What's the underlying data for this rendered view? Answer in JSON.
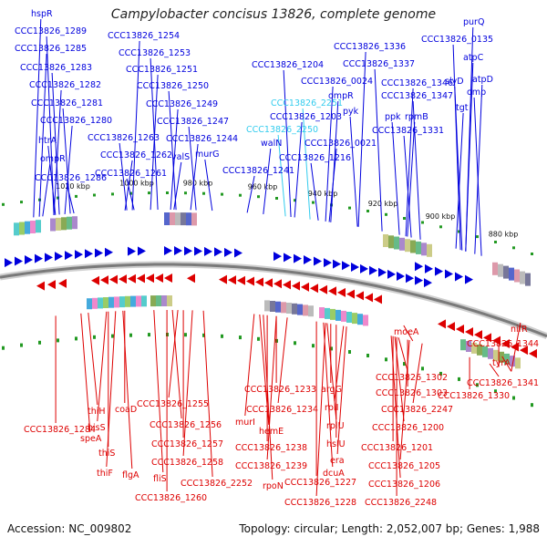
{
  "title": "Campylobacter concisus 13826, complete genome",
  "footer": {
    "accession": "Accession: NC_009802",
    "summary": "Topology: circular; Length: 2,052,007 bp; Genes: 1,988"
  },
  "colors": {
    "forward": "#0000dd",
    "reverse": "#dd0000",
    "highlight": "#33ccee",
    "ring": "#888888",
    "tick": "#229922"
  },
  "kbp_labels": [
    "1020 kbp",
    "1000 kbp",
    "980 kbp",
    "960 kbp",
    "940 kbp",
    "920 kbp",
    "900 kbp",
    "880 kbp"
  ],
  "forward_labels": [
    "hspR",
    "CCC13826_1289",
    "CCC13826_1285",
    "CCC13826_1283",
    "CCC13826_1282",
    "CCC13826_1281",
    "CCC13826_1280",
    "htrA",
    "ompR",
    "CCC13826_1286",
    "CCC13826_1254",
    "CCC13826_1253",
    "CCC13826_1251",
    "CCC13826_1250",
    "CCC13826_1249",
    "CCC13826_1247",
    "CCC13826_1244",
    "CCC13826_1263",
    "CCC13826_1262",
    "CCC13826_1261",
    "valS",
    "murG",
    "CCC13826_1241",
    "CCC13826_1204",
    "CCC13826_0024",
    "CCC13826_2251",
    "CCC13826_1203",
    "CCC13826_2250",
    "walN",
    "CCC13826_1216",
    "CCC13826_1336",
    "CCC13826_1337",
    "ompR",
    "pyk",
    "CCC13826_0021",
    "ppk",
    "CCC13826_1346",
    "CCC13826_1347",
    "rpmB",
    "CCC13826_1331",
    "purQ",
    "CCC13826_0135",
    "atpC",
    "slyD",
    "atpD",
    "omp",
    "tgt"
  ],
  "reverse_labels": [
    "thiH",
    "coaD",
    "hisS",
    "speA",
    "thiS",
    "thiF",
    "flgA",
    "CCC13826_1284",
    "CCC13826_1255",
    "CCC13826_1256",
    "CCC13826_1257",
    "CCC13826_1258",
    "fliS",
    "CCC13826_1260",
    "murI",
    "CCC13826_2252",
    "CCC13826_1233",
    "CCC13826_1234",
    "hemE",
    "CCC13826_1238",
    "CCC13826_1239",
    "rpoN",
    "argG",
    "rplI",
    "rplU",
    "hslU",
    "era",
    "dcuA",
    "CCC13826_1227",
    "CCC13826_1228",
    "CCC13826_1302",
    "CCC13826_1303",
    "CCC13826_2247",
    "CCC13826_1200",
    "CCC13826_1201",
    "CCC13826_1205",
    "CCC13826_1206",
    "CCC13826_2248",
    "moeA",
    "nifR",
    "CCC13826_1344",
    "tyrA",
    "CCC13826_1341",
    "CCC13826_1330"
  ]
}
